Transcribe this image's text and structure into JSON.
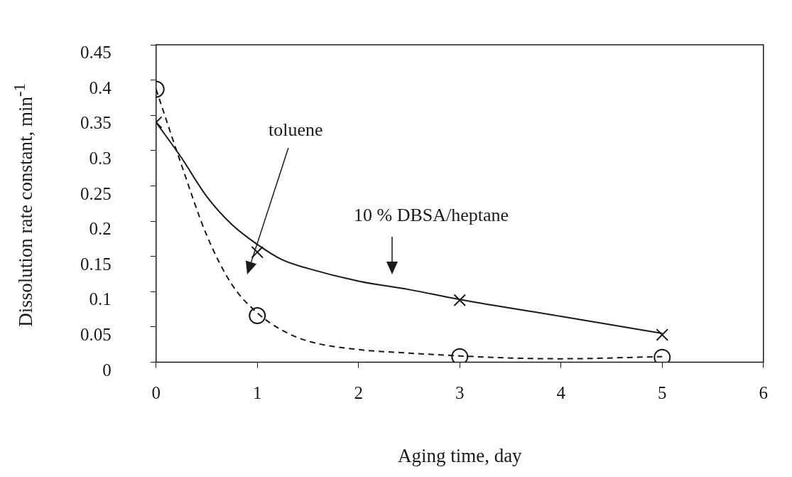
{
  "chart_data": {
    "type": "scatter",
    "xlabel": "Aging time, day",
    "ylabel": "Dissolution rate constant, min$^{-1}$",
    "xlim": [
      0,
      6
    ],
    "xticks": [
      0,
      1,
      2,
      3,
      4,
      5,
      6
    ],
    "ylim": [
      0,
      0.45
    ],
    "yticks": [
      0,
      0.05,
      0.1,
      0.15,
      0.2,
      0.25,
      0.3,
      0.35,
      0.4,
      0.45
    ],
    "grid": false,
    "legend": false,
    "series": [
      {
        "type": "scatter",
        "marker": "cross",
        "color": "#1a1a1a",
        "x": [
          0,
          1,
          3,
          5
        ],
        "values": [
          0.34,
          0.156,
          0.088,
          0.039
        ]
      },
      {
        "type": "scatter",
        "marker": "circle",
        "color": "#1a1a1a",
        "x": [
          0,
          1,
          3,
          5
        ],
        "values": [
          0.387,
          0.066,
          0.008,
          0.007
        ]
      },
      {
        "type": "line",
        "line_style": "solid",
        "color": "#1a1a1a",
        "x": [
          0,
          0.25,
          0.5,
          0.75,
          1,
          1.25,
          1.5,
          2,
          2.5,
          3,
          4,
          5
        ],
        "values": [
          0.34,
          0.29,
          0.235,
          0.195,
          0.167,
          0.145,
          0.133,
          0.115,
          0.103,
          0.089,
          0.065,
          0.041
        ]
      },
      {
        "type": "line",
        "line_style": "dashed",
        "color": "#1a1a1a",
        "x": [
          0,
          0.25,
          0.5,
          0.75,
          1,
          1.25,
          1.5,
          2,
          2.5,
          3,
          3.5,
          4,
          5
        ],
        "values": [
          0.387,
          0.28,
          0.18,
          0.11,
          0.07,
          0.045,
          0.03,
          0.018,
          0.013,
          0.009,
          0.006,
          0.005,
          0.008
        ]
      }
    ],
    "annotations": [
      "toluene",
      "10 % DBSA/heptane"
    ]
  }
}
